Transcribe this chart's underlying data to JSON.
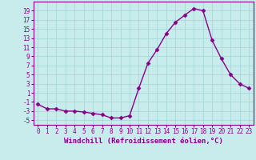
{
  "x": [
    0,
    1,
    2,
    3,
    4,
    5,
    6,
    7,
    8,
    9,
    10,
    11,
    12,
    13,
    14,
    15,
    16,
    17,
    18,
    19,
    20,
    21,
    22,
    23
  ],
  "y": [
    -1.5,
    -2.5,
    -2.5,
    -3,
    -3,
    -3.2,
    -3.5,
    -3.8,
    -4.5,
    -4.5,
    -4,
    2,
    7.5,
    10.5,
    14,
    16.5,
    18,
    19.5,
    19,
    12.5,
    8.5,
    5,
    3,
    2
  ],
  "line_color": "#880088",
  "marker": "D",
  "marker_size": 2.5,
  "bg_color": "#c8ecec",
  "grid_color": "#a8d8d8",
  "xlabel": "Windchill (Refroidissement éolien,°C)",
  "xlim": [
    -0.5,
    23.5
  ],
  "ylim": [
    -6,
    21
  ],
  "yticks": [
    -5,
    -3,
    -1,
    1,
    3,
    5,
    7,
    9,
    11,
    13,
    15,
    17,
    19
  ],
  "xticks": [
    0,
    1,
    2,
    3,
    4,
    5,
    6,
    7,
    8,
    9,
    10,
    11,
    12,
    13,
    14,
    15,
    16,
    17,
    18,
    19,
    20,
    21,
    22,
    23
  ],
  "xlabel_fontsize": 6.5,
  "tick_fontsize": 5.5,
  "label_color": "#880088",
  "spine_color": "#880088",
  "linewidth": 1.0
}
